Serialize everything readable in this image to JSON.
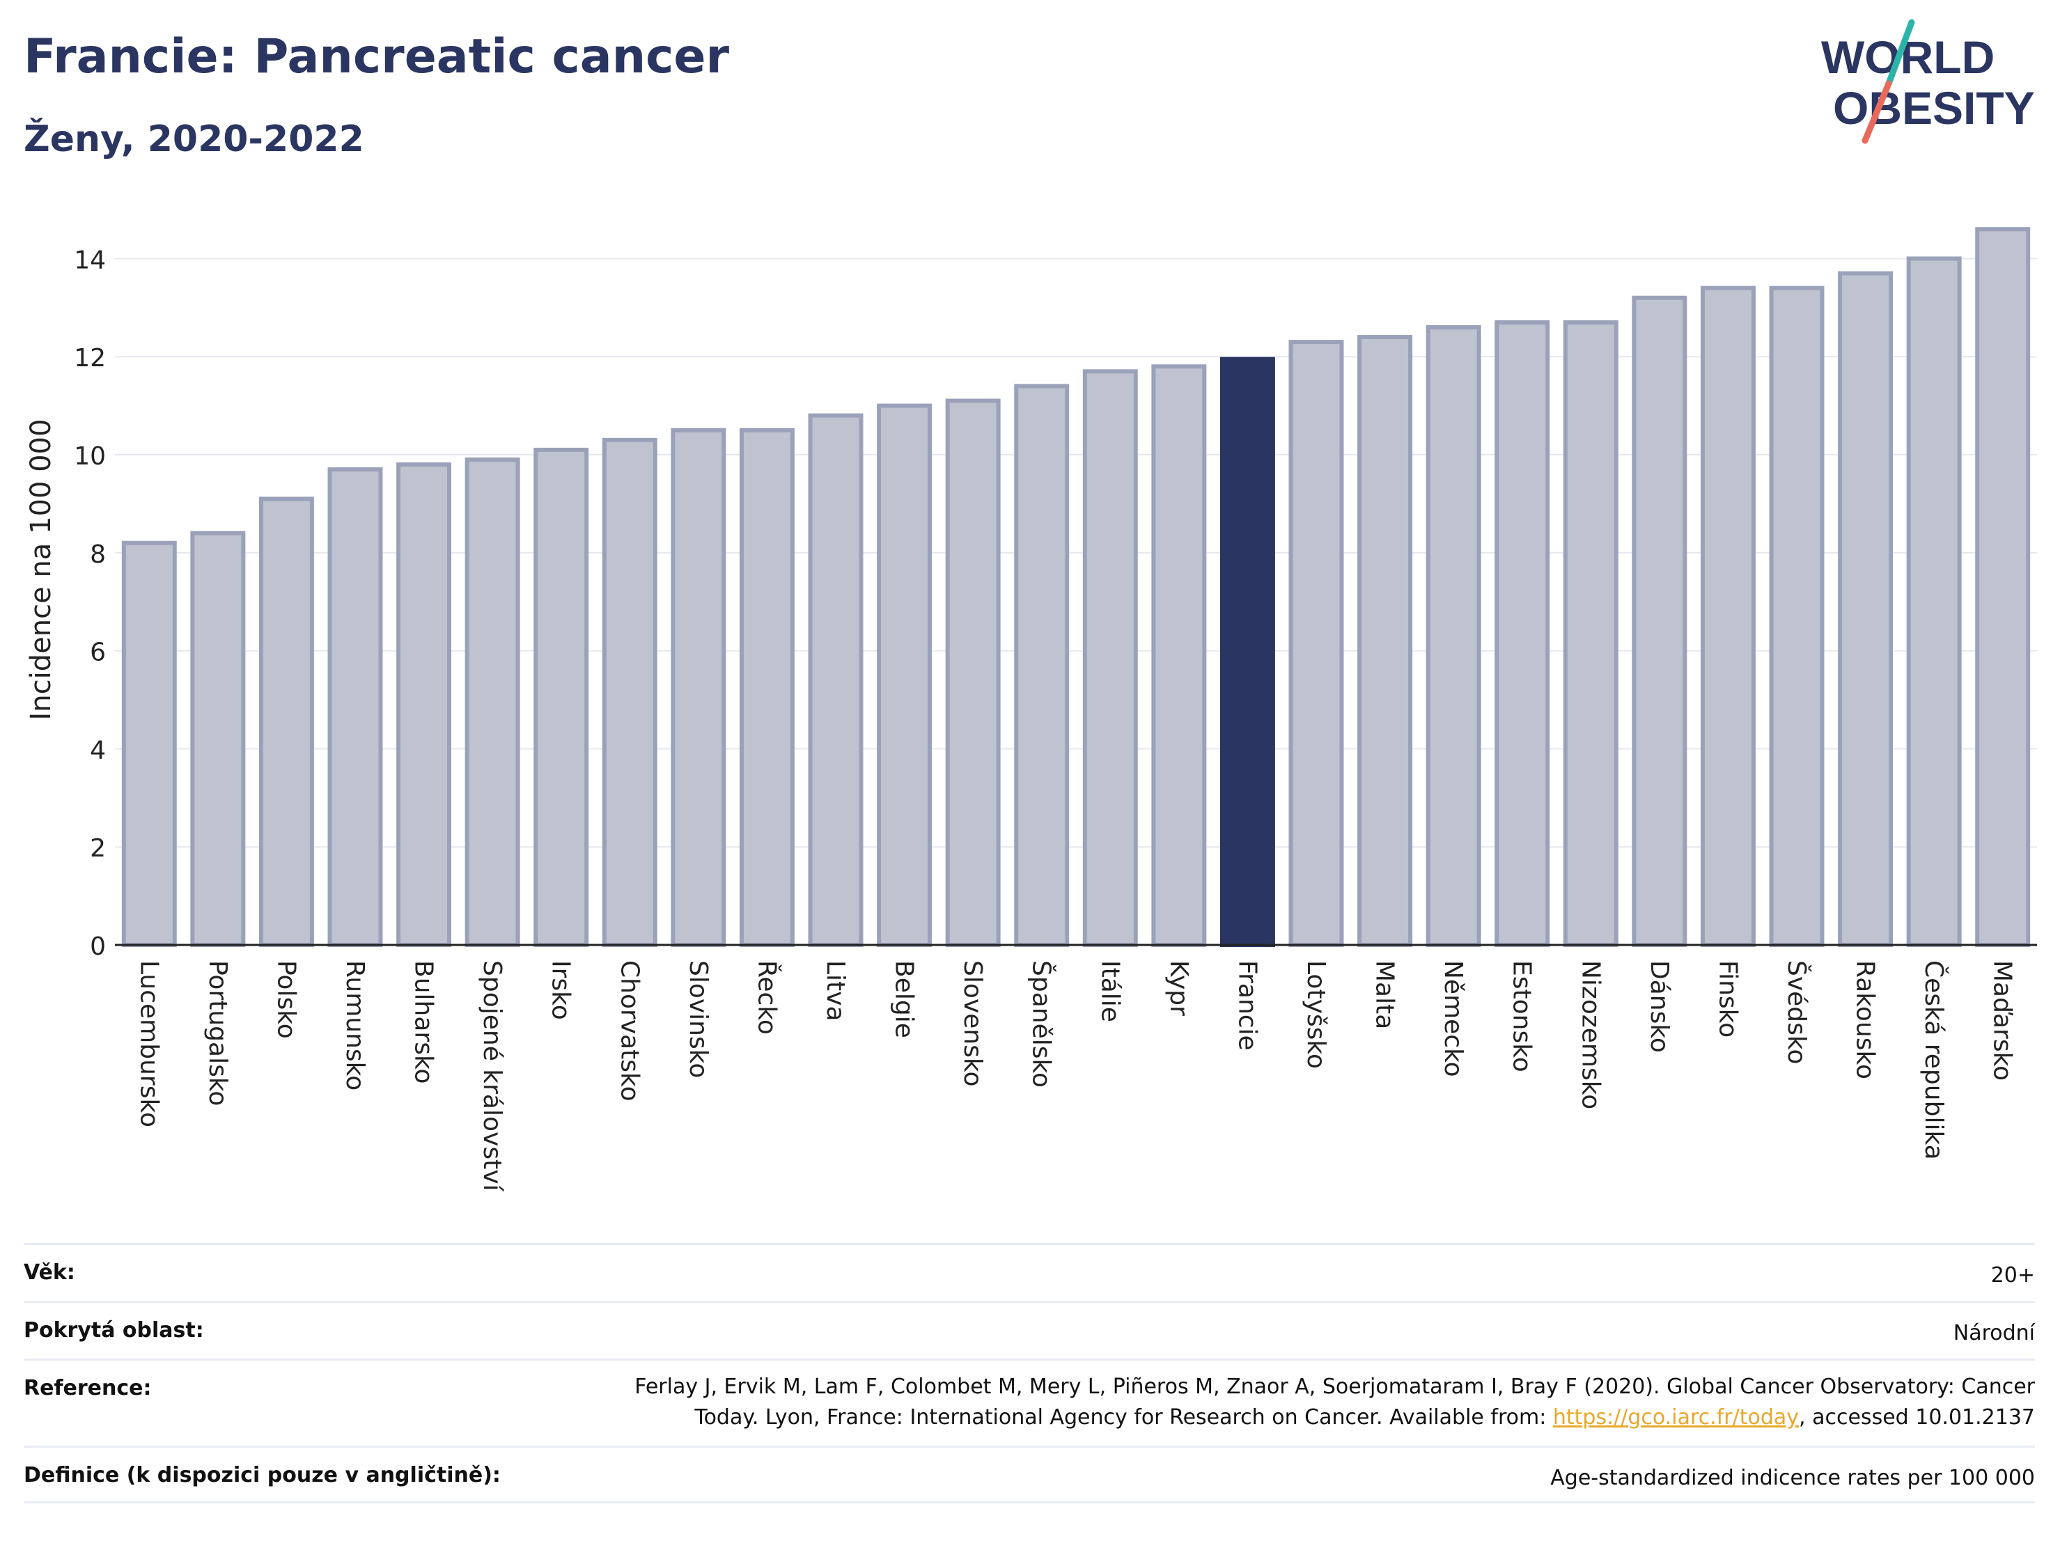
{
  "title": "Francie: Pancreatic cancer",
  "subtitle": "Ženy, 2020-2022",
  "logo": {
    "line1": "WORLD",
    "line2": "OBESITY",
    "colors": {
      "text": "#2a3561",
      "slash_top": "#2bb5a8",
      "slash_bottom": "#e86a5c"
    }
  },
  "colors": {
    "bar": "#bfc3d0",
    "bar_stroke": "#9aa1b9",
    "highlight": "#2a3561",
    "grid": "#e6e8ef",
    "axis": "#222222"
  },
  "chart_data": {
    "type": "bar",
    "ylabel": "Incidence na 100 000",
    "xlabel": "",
    "ylim": [
      0,
      15
    ],
    "yticks": [
      0,
      2,
      4,
      6,
      8,
      10,
      12,
      14
    ],
    "grid": true,
    "highlight": "Francie",
    "categories": [
      "Lucembursko",
      "Portugalsko",
      "Polsko",
      "Rumunsko",
      "Bulharsko",
      "Spojené království",
      "Irsko",
      "Chorvatsko",
      "Slovinsko",
      "Řecko",
      "Litva",
      "Belgie",
      "Slovensko",
      "Španělsko",
      "Itálie",
      "Kypr",
      "Francie",
      "Lotyšsko",
      "Malta",
      "Německo",
      "Estonsko",
      "Nizozemsko",
      "Dánsko",
      "Finsko",
      "Švédsko",
      "Rakousko",
      "Česká republika",
      "Maďarsko"
    ],
    "values": [
      8.2,
      8.4,
      9.1,
      9.7,
      9.8,
      9.9,
      10.1,
      10.3,
      10.5,
      10.5,
      10.8,
      11.0,
      11.1,
      11.4,
      11.7,
      11.8,
      11.95,
      12.3,
      12.4,
      12.6,
      12.7,
      12.7,
      13.2,
      13.4,
      13.4,
      13.7,
      14.0,
      14.6
    ]
  },
  "meta": {
    "age_label": "Věk:",
    "age_value": "20+",
    "area_label": "Pokrytá oblast:",
    "area_value": "Národní",
    "ref_label": "Reference:",
    "ref_text_line1": "Ferlay J, Ervik M, Lam F, Colombet M, Mery L, Piñeros M, Znaor A, Soerjomataram I, Bray F (2020). Global Cancer Observatory: Cancer",
    "ref_text_line2_a": "Today. Lyon, France: International Agency for Research on Cancer. Available from: ",
    "ref_link": "https://gco.iarc.fr/today",
    "ref_text_line2_b": ", accessed 10.01.2137",
    "def_label": "Definice (k dispozici pouze v angličtině):",
    "def_value": "Age-standardized indicence rates per 100 000"
  }
}
